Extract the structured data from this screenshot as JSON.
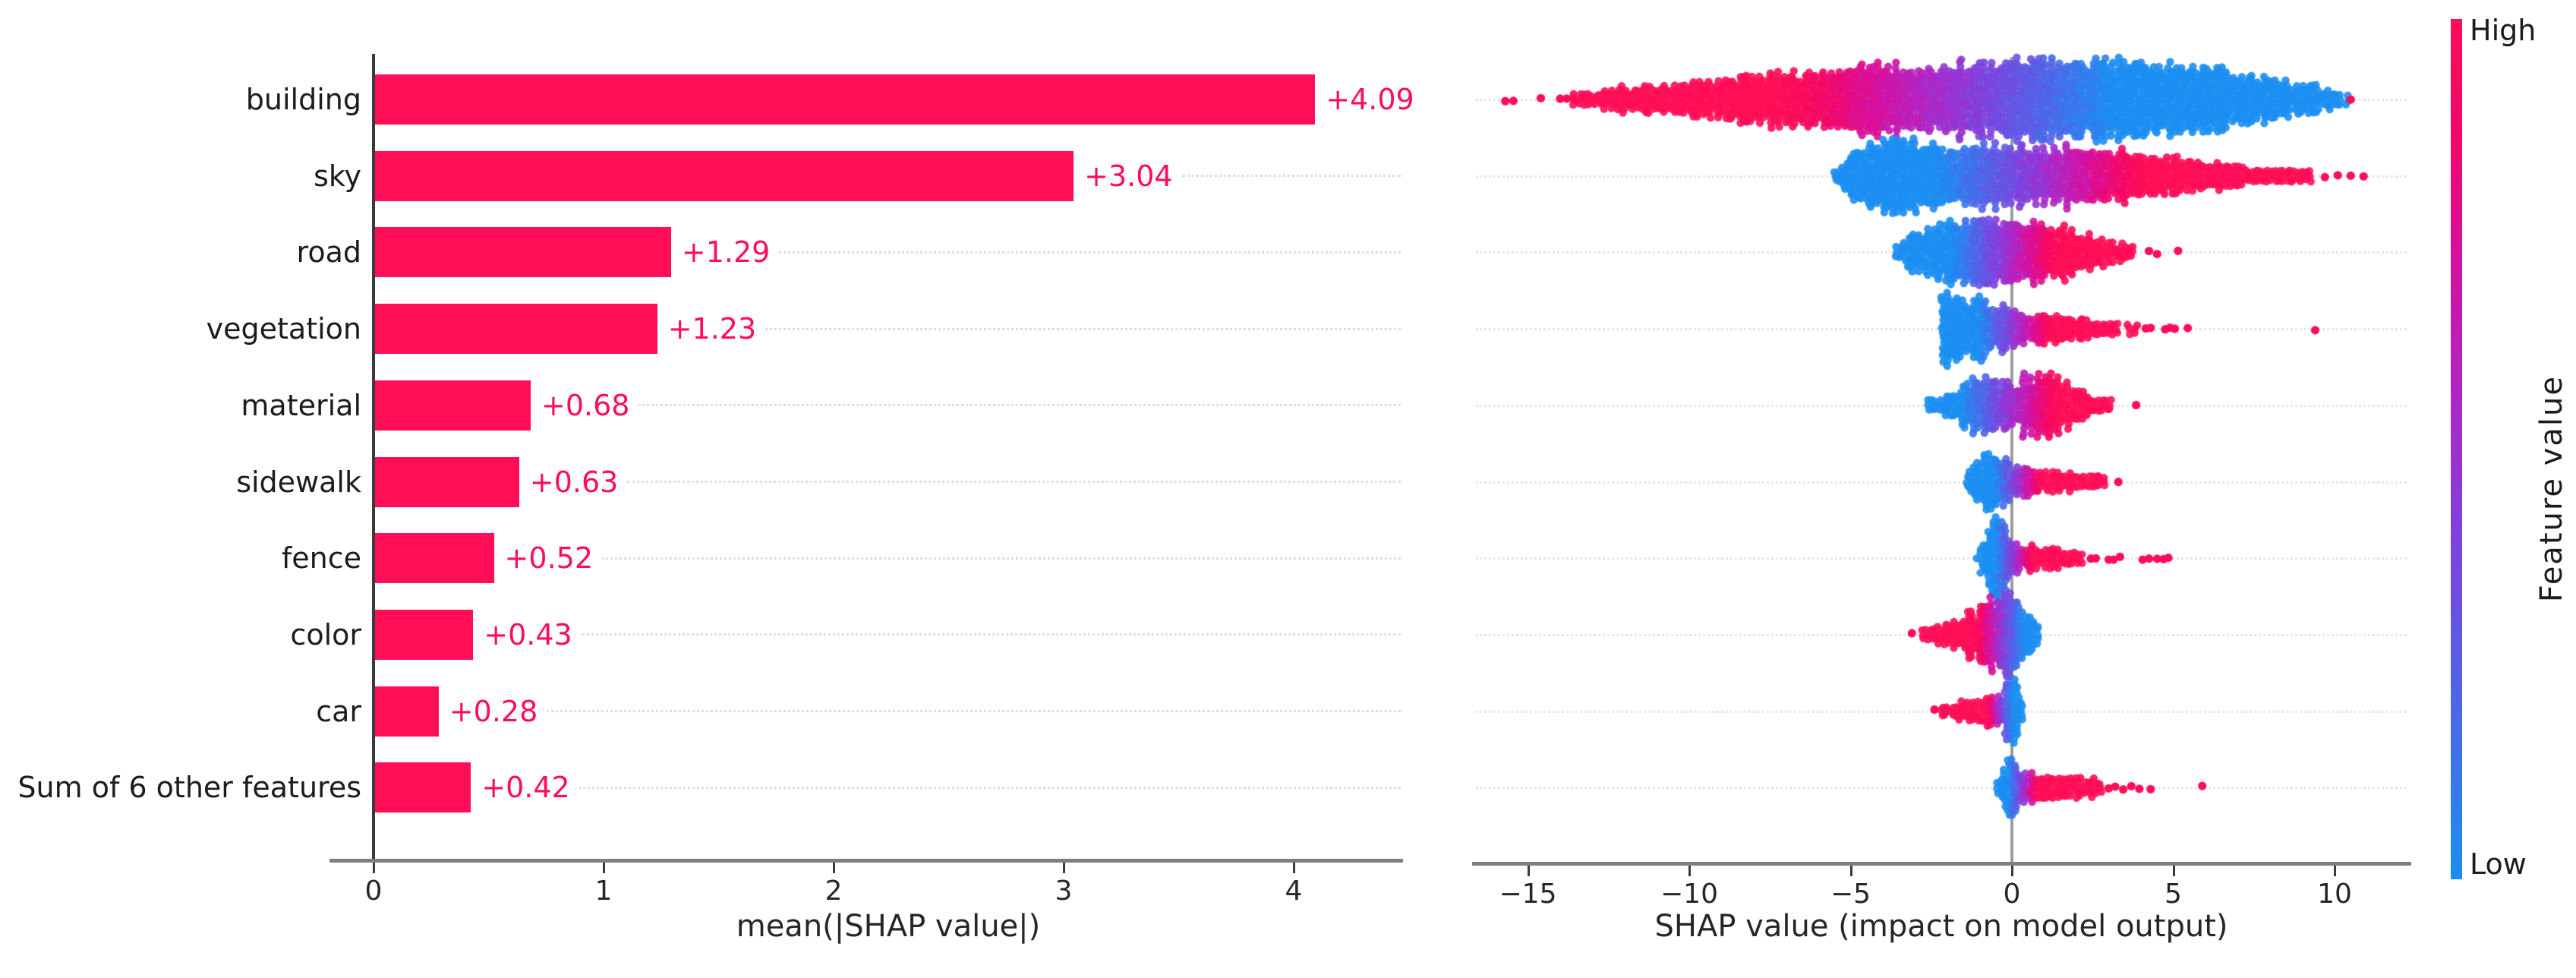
{
  "chart_data": [
    {
      "type": "bar",
      "title": "",
      "xlabel": "mean(|SHAP value|)",
      "categories": [
        "building",
        "sky",
        "road",
        "vegetation",
        "material",
        "sidewalk",
        "fence",
        "color",
        "car",
        "Sum of 6 other features"
      ],
      "values": [
        4.09,
        3.04,
        1.29,
        1.23,
        0.68,
        0.63,
        0.52,
        0.43,
        0.28,
        0.42
      ],
      "value_labels": [
        "+4.09",
        "+3.04",
        "+1.29",
        "+1.23",
        "+0.68",
        "+0.63",
        "+0.52",
        "+0.43",
        "+0.28",
        "+0.42"
      ],
      "xticks": [
        0,
        1,
        2,
        3,
        4
      ],
      "xtick_labels": [
        "0",
        "1",
        "2",
        "3",
        "4"
      ],
      "xlim": [
        -0.19,
        4.47
      ],
      "bar_color": "#ff0d57",
      "grid": "dotted-row-leaders"
    },
    {
      "type": "beeswarm",
      "title": "",
      "xlabel": "SHAP value (impact on model output)",
      "xticks": [
        -15,
        -10,
        -5,
        0,
        5,
        10
      ],
      "xtick_labels": [
        "−15",
        "−10",
        "−5",
        "0",
        "5",
        "10"
      ],
      "xlim": [
        -16.7,
        12.4
      ],
      "zero_line_color": "#9e9e9e",
      "features": [
        {
          "name": "building",
          "cmap": [
            3.2,
            -7
          ],
          "envelope": [
            [
              -13.6,
              4
            ],
            [
              -13,
              7
            ],
            [
              -12,
              11
            ],
            [
              -11,
              15
            ],
            [
              -10,
              18
            ],
            [
              -9,
              21
            ],
            [
              -8,
              25
            ],
            [
              -7,
              28
            ],
            [
              -6,
              31
            ],
            [
              -5,
              35
            ],
            [
              -4,
              38
            ],
            [
              -3,
              40
            ],
            [
              -2,
              41
            ],
            [
              -1,
              42
            ],
            [
              0,
              44
            ],
            [
              0.8,
              46
            ],
            [
              1.6,
              45
            ],
            [
              2.4,
              44
            ],
            [
              3.2,
              45
            ],
            [
              4,
              44
            ],
            [
              4.8,
              41
            ],
            [
              5.6,
              38
            ],
            [
              6.4,
              33
            ],
            [
              7.2,
              28
            ],
            [
              8,
              23
            ],
            [
              8.8,
              18
            ],
            [
              9.4,
              13
            ],
            [
              10,
              8
            ],
            [
              10.4,
              4
            ]
          ],
          "outliers": [
            -15.7,
            -15.45,
            -14.6,
            -14.0,
            -13.8,
            -13.6,
            -13.35,
            -13.15,
            10.5
          ]
        },
        {
          "name": "sky",
          "cmap": [
            -2.2,
            4.2
          ],
          "envelope": [
            [
              -5.6,
              3
            ],
            [
              -5.1,
              16
            ],
            [
              -4.6,
              30
            ],
            [
              -4.1,
              40
            ],
            [
              -3.6,
              42
            ],
            [
              -3.1,
              40
            ],
            [
              -2.6,
              38
            ],
            [
              -2.1,
              36
            ],
            [
              -1.6,
              34
            ],
            [
              -1.1,
              33
            ],
            [
              -0.6,
              32
            ],
            [
              0,
              32
            ],
            [
              0.5,
              33
            ],
            [
              1,
              34
            ],
            [
              1.5,
              33
            ],
            [
              2,
              31
            ],
            [
              2.5,
              29
            ],
            [
              3,
              27
            ],
            [
              3.5,
              25
            ],
            [
              4,
              23
            ],
            [
              4.5,
              20
            ],
            [
              5,
              18
            ],
            [
              5.5,
              15
            ],
            [
              6,
              13
            ],
            [
              6.5,
              11
            ],
            [
              7,
              9
            ],
            [
              7.5,
              8
            ],
            [
              8,
              7
            ],
            [
              8.5,
              6
            ],
            [
              9,
              5
            ],
            [
              9.3,
              4
            ]
          ],
          "outliers": [
            9.7,
            10.1,
            10.5,
            10.9
          ]
        },
        {
          "name": "road",
          "cmap": [
            -1.8,
            1.5
          ],
          "envelope": [
            [
              -3.8,
              2
            ],
            [
              -3.4,
              10
            ],
            [
              -3,
              18
            ],
            [
              -2.6,
              26
            ],
            [
              -2.2,
              32
            ],
            [
              -1.8,
              35
            ],
            [
              -1.4,
              36
            ],
            [
              -1,
              37
            ],
            [
              -0.6,
              36
            ],
            [
              -0.2,
              34
            ],
            [
              0.2,
              33
            ],
            [
              0.6,
              34
            ],
            [
              1,
              32
            ],
            [
              1.4,
              28
            ],
            [
              1.8,
              24
            ],
            [
              2.2,
              19
            ],
            [
              2.6,
              15
            ],
            [
              3,
              11
            ],
            [
              3.4,
              8
            ],
            [
              3.8,
              5
            ]
          ],
          "outliers": [
            4.25,
            4.5,
            5.15
          ]
        },
        {
          "name": "vegetation",
          "cmap": [
            -1.0,
            1.3
          ],
          "envelope": [
            [
              -2.15,
              44
            ],
            [
              -2.0,
              46
            ],
            [
              -1.8,
              44
            ],
            [
              -1.6,
              40
            ],
            [
              -1.4,
              36
            ],
            [
              -1.2,
              32
            ],
            [
              -1,
              30
            ],
            [
              -0.8,
              28
            ],
            [
              -0.6,
              26
            ],
            [
              -0.4,
              25
            ],
            [
              -0.2,
              24
            ],
            [
              0,
              23
            ],
            [
              0.3,
              21
            ],
            [
              0.6,
              19
            ],
            [
              0.9,
              17
            ],
            [
              1.2,
              15
            ],
            [
              1.5,
              13
            ],
            [
              1.8,
              11
            ],
            [
              2.1,
              10
            ],
            [
              2.4,
              8
            ],
            [
              2.7,
              7
            ],
            [
              3,
              6
            ],
            [
              3.3,
              5
            ],
            [
              3.9,
              4
            ]
          ],
          "outliers": [
            4.15,
            4.3,
            4.75,
            4.9,
            5.05,
            5.45,
            9.4
          ]
        },
        {
          "name": "material",
          "cmap": [
            -1.5,
            1.5
          ],
          "envelope": [
            [
              -2.6,
              2
            ],
            [
              -2.3,
              6
            ],
            [
              -2,
              10
            ],
            [
              -1.7,
              16
            ],
            [
              -1.4,
              22
            ],
            [
              -1.1,
              26
            ],
            [
              -0.8,
              28
            ],
            [
              -0.5,
              26
            ],
            [
              -0.2,
              24
            ],
            [
              0.1,
              26
            ],
            [
              0.4,
              30
            ],
            [
              0.7,
              33
            ],
            [
              1,
              34
            ],
            [
              1.3,
              32
            ],
            [
              1.6,
              28
            ],
            [
              1.9,
              22
            ],
            [
              2.2,
              16
            ],
            [
              2.5,
              11
            ],
            [
              2.8,
              7
            ],
            [
              3.1,
              4
            ]
          ],
          "outliers": [
            3.85
          ]
        },
        {
          "name": "sidewalk",
          "cmap": [
            -0.5,
            1.0
          ],
          "envelope": [
            [
              -1.4,
              4
            ],
            [
              -1.2,
              14
            ],
            [
              -1,
              24
            ],
            [
              -0.8,
              30
            ],
            [
              -0.6,
              32
            ],
            [
              -0.4,
              30
            ],
            [
              -0.2,
              26
            ],
            [
              0,
              22
            ],
            [
              0.2,
              18
            ],
            [
              0.5,
              15
            ],
            [
              0.8,
              13
            ],
            [
              1.1,
              11
            ],
            [
              1.4,
              9
            ],
            [
              1.7,
              8
            ],
            [
              2,
              7
            ],
            [
              2.3,
              6
            ],
            [
              2.6,
              5
            ],
            [
              2.9,
              4
            ],
            [
              3.1,
              3
            ]
          ],
          "outliers": [
            3.3
          ]
        },
        {
          "name": "fence",
          "cmap": [
            -0.45,
            0.7
          ],
          "envelope": [
            [
              -1.05,
              3
            ],
            [
              -0.9,
              16
            ],
            [
              -0.75,
              30
            ],
            [
              -0.6,
              40
            ],
            [
              -0.45,
              42
            ],
            [
              -0.3,
              38
            ],
            [
              -0.15,
              26
            ],
            [
              0,
              16
            ],
            [
              0.2,
              13
            ],
            [
              0.45,
              13
            ],
            [
              0.7,
              12
            ],
            [
              0.95,
              12
            ],
            [
              1.2,
              11
            ],
            [
              1.45,
              10
            ],
            [
              1.7,
              9
            ],
            [
              1.95,
              8
            ],
            [
              2.2,
              6
            ]
          ],
          "outliers": [
            2.45,
            2.6,
            3.0,
            3.15,
            3.35,
            4.05,
            4.25,
            4.5,
            4.7,
            4.85
          ]
        },
        {
          "name": "color",
          "cmap": [
            0.4,
            -1.1
          ],
          "envelope": [
            [
              -3.0,
              2
            ],
            [
              -2.7,
              4
            ],
            [
              -2.4,
              6
            ],
            [
              -2.1,
              9
            ],
            [
              -1.8,
              13
            ],
            [
              -1.5,
              18
            ],
            [
              -1.25,
              24
            ],
            [
              -1,
              29
            ],
            [
              -0.75,
              36
            ],
            [
              -0.5,
              42
            ],
            [
              -0.3,
              45
            ],
            [
              -0.1,
              44
            ],
            [
              0.1,
              41
            ],
            [
              0.3,
              36
            ],
            [
              0.5,
              28
            ],
            [
              0.7,
              16
            ],
            [
              0.85,
              6
            ]
          ],
          "outliers": [
            -3.1
          ]
        },
        {
          "name": "car",
          "cmap": [
            0.05,
            -0.75
          ],
          "envelope": [
            [
              -2.3,
              2
            ],
            [
              -2.05,
              3
            ],
            [
              -1.8,
              5
            ],
            [
              -1.55,
              7
            ],
            [
              -1.3,
              10
            ],
            [
              -1.05,
              13
            ],
            [
              -0.8,
              16
            ],
            [
              -0.6,
              17
            ],
            [
              -0.4,
              16
            ],
            [
              -0.25,
              20
            ],
            [
              -0.12,
              34
            ],
            [
              0,
              40
            ],
            [
              0.12,
              34
            ],
            [
              0.25,
              16
            ],
            [
              0.4,
              5
            ]
          ],
          "outliers": [
            -2.4
          ]
        },
        {
          "name": "Sum of 6 other features",
          "cmap": [
            -0.05,
            0.85
          ],
          "envelope": [
            [
              -0.45,
              4
            ],
            [
              -0.3,
              16
            ],
            [
              -0.18,
              32
            ],
            [
              -0.08,
              42
            ],
            [
              0.02,
              40
            ],
            [
              0.12,
              30
            ],
            [
              0.25,
              16
            ],
            [
              0.45,
              13
            ],
            [
              0.7,
              13
            ],
            [
              1,
              12
            ],
            [
              1.3,
              12
            ],
            [
              1.6,
              11
            ],
            [
              1.9,
              10
            ],
            [
              2.2,
              9
            ],
            [
              2.5,
              8
            ],
            [
              2.8,
              6
            ]
          ],
          "outliers": [
            3.0,
            3.2,
            3.45,
            3.7,
            3.95,
            4.3,
            5.9
          ]
        }
      ],
      "colorbar": {
        "high": "High",
        "low": "Low",
        "label": "Feature value",
        "stops": [
          [
            0,
            "#1b8ef2"
          ],
          [
            0.2,
            "#4d67e9"
          ],
          [
            0.4,
            "#7e42dd"
          ],
          [
            0.55,
            "#ab28c8"
          ],
          [
            0.72,
            "#d610a0"
          ],
          [
            0.87,
            "#f30766"
          ],
          [
            1,
            "#ff0d57"
          ]
        ]
      }
    }
  ]
}
